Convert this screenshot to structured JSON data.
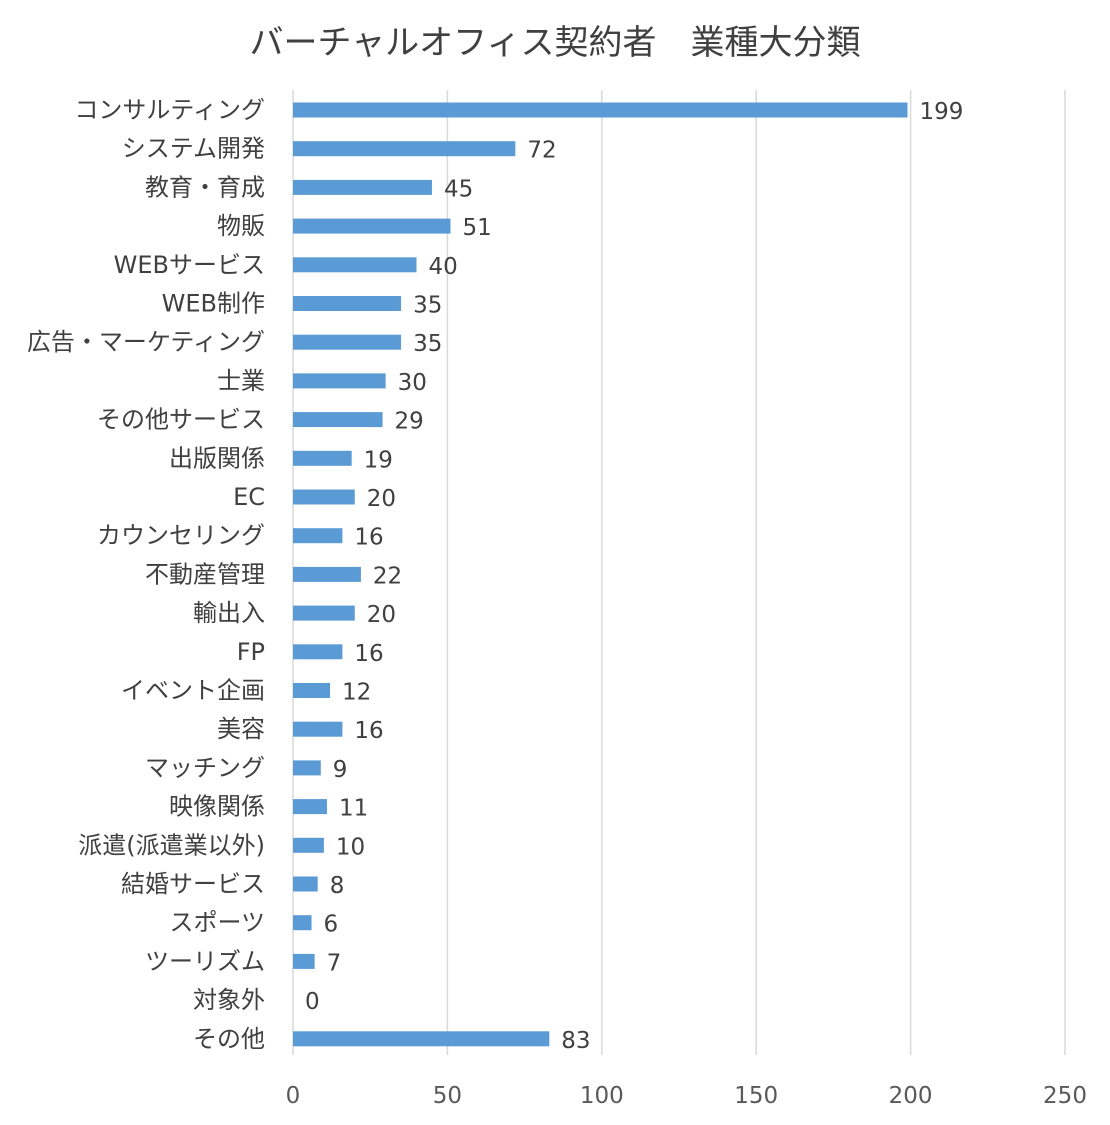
{
  "chart_data": {
    "type": "bar",
    "orientation": "horizontal",
    "title": "バーチャルオフィス契約者　業種大分類",
    "xlabel": "",
    "ylabel": "",
    "xlim": [
      0,
      250
    ],
    "x_ticks": [
      0,
      50,
      100,
      150,
      200,
      250
    ],
    "grid": true,
    "legend": "none",
    "bar_color": "#5b9bd5",
    "categories": [
      "コンサルティング",
      "システム開発",
      "教育・育成",
      "物販",
      "WEBサービス",
      "WEB制作",
      "広告・マーケティング",
      "士業",
      "その他サービス",
      "出版関係",
      "EC",
      "カウンセリング",
      "不動産管理",
      "輸出入",
      "FP",
      "イベント企画",
      "美容",
      "マッチング",
      "映像関係",
      "派遣(派遣業以外)",
      "結婚サービス",
      "スポーツ",
      "ツーリズム",
      "対象外",
      "その他"
    ],
    "values": [
      199,
      72,
      45,
      51,
      40,
      35,
      35,
      30,
      29,
      19,
      20,
      16,
      22,
      20,
      16,
      12,
      16,
      9,
      11,
      10,
      8,
      6,
      7,
      0,
      83
    ]
  }
}
